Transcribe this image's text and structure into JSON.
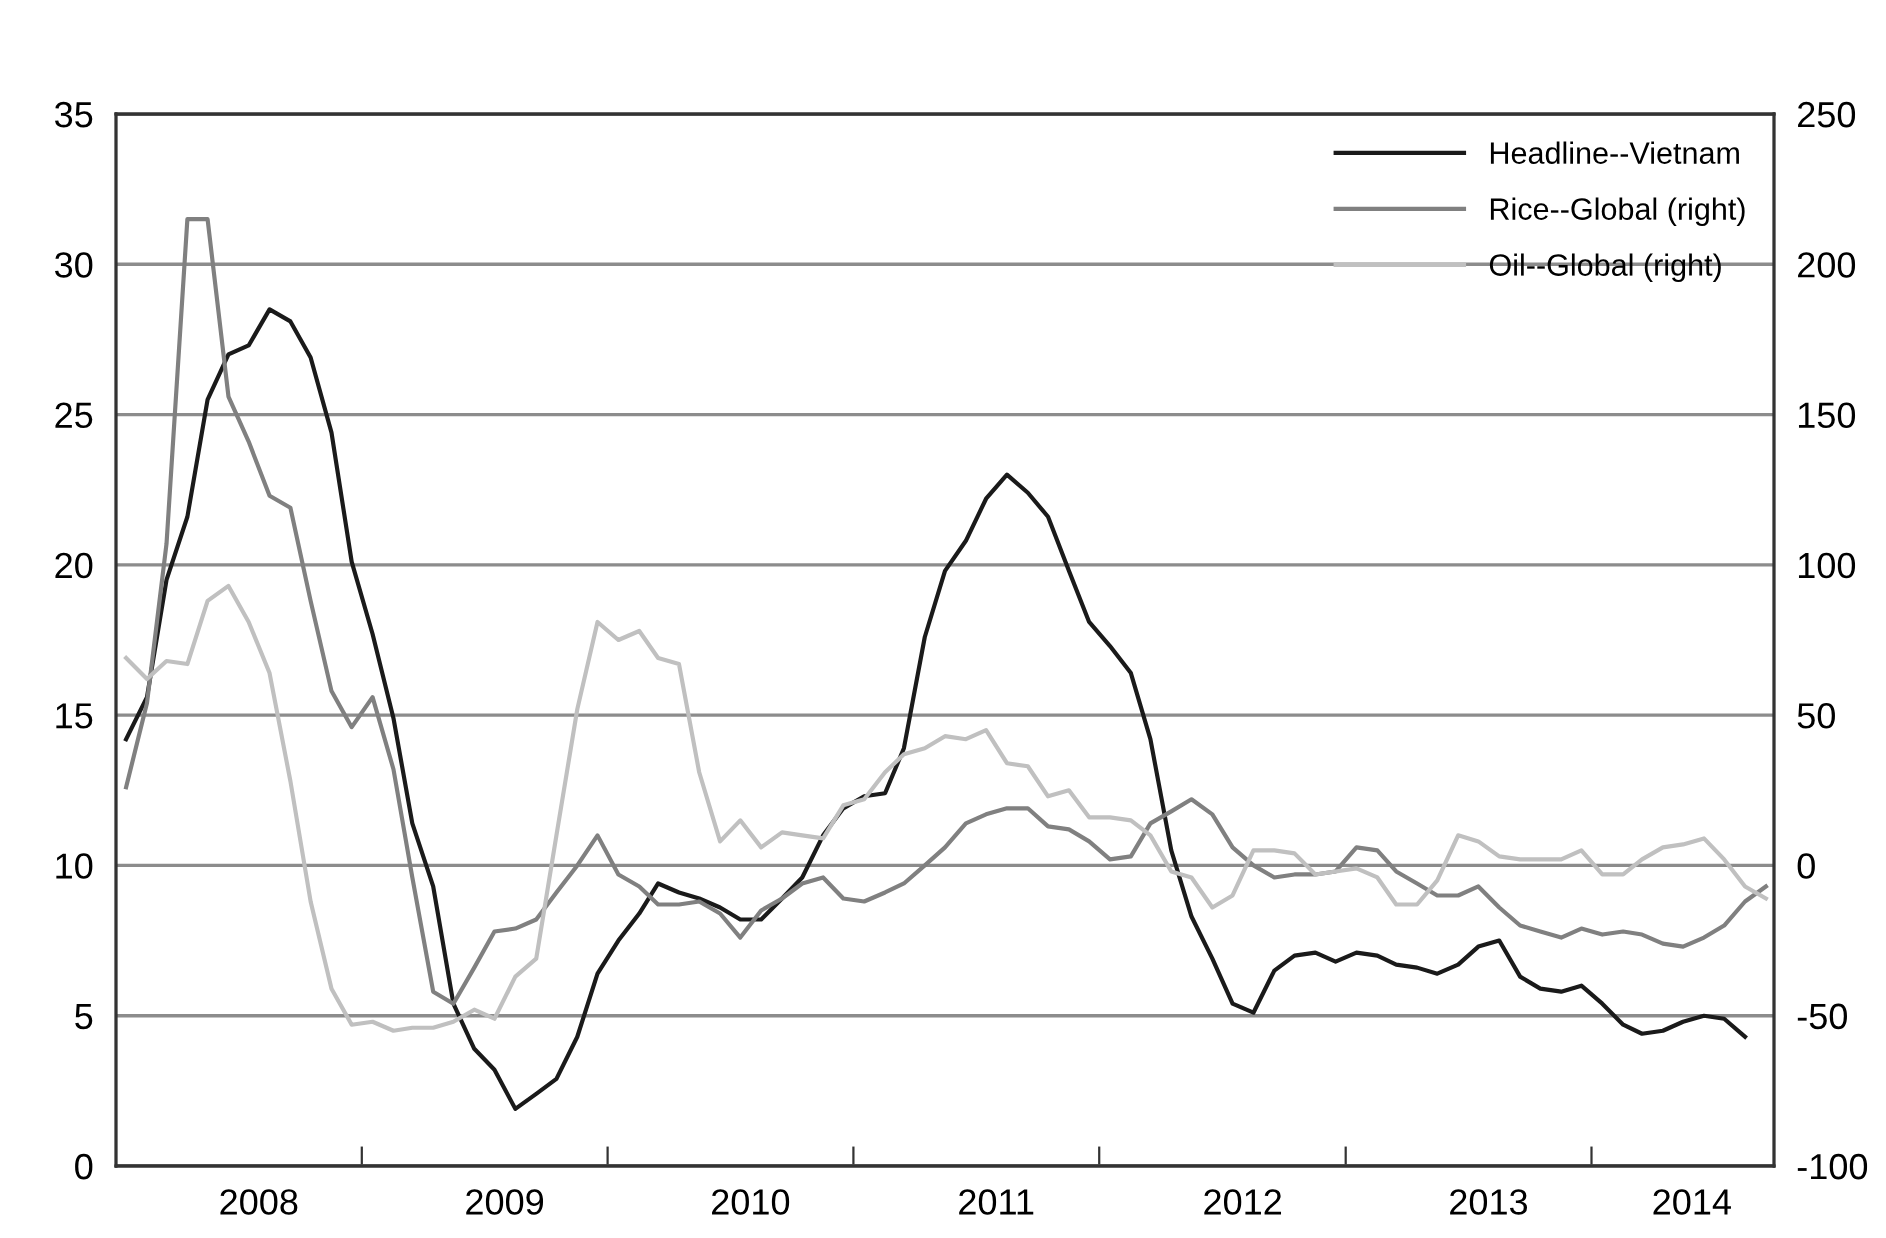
{
  "chart_data": {
    "type": "line",
    "x": [
      "2008-01",
      "2008-02",
      "2008-03",
      "2008-04",
      "2008-05",
      "2008-06",
      "2008-07",
      "2008-08",
      "2008-09",
      "2008-10",
      "2008-11",
      "2008-12",
      "2009-01",
      "2009-02",
      "2009-03",
      "2009-04",
      "2009-05",
      "2009-06",
      "2009-07",
      "2009-08",
      "2009-09",
      "2009-10",
      "2009-11",
      "2009-12",
      "2010-01",
      "2010-02",
      "2010-03",
      "2010-04",
      "2010-05",
      "2010-06",
      "2010-07",
      "2010-08",
      "2010-09",
      "2010-10",
      "2010-11",
      "2010-12",
      "2011-01",
      "2011-02",
      "2011-03",
      "2011-04",
      "2011-05",
      "2011-06",
      "2011-07",
      "2011-08",
      "2011-09",
      "2011-10",
      "2011-11",
      "2011-12",
      "2012-01",
      "2012-02",
      "2012-03",
      "2012-04",
      "2012-05",
      "2012-06",
      "2012-07",
      "2012-08",
      "2012-09",
      "2012-10",
      "2012-11",
      "2012-12",
      "2013-01",
      "2013-02",
      "2013-03",
      "2013-04",
      "2013-05",
      "2013-06",
      "2013-07",
      "2013-08",
      "2013-09",
      "2013-10",
      "2013-11",
      "2013-12",
      "2014-01",
      "2014-02",
      "2014-03",
      "2014-04",
      "2014-05",
      "2014-06",
      "2014-07",
      "2014-08",
      "2014-09"
    ],
    "series": [
      {
        "name": "Headline--Vietnam",
        "color": "#1a1a1a",
        "values": [
          14.2,
          15.6,
          19.5,
          21.6,
          25.5,
          27.0,
          27.3,
          28.5,
          28.1,
          26.9,
          24.4,
          20.1,
          17.7,
          14.9,
          11.4,
          9.3,
          5.4,
          3.9,
          3.2,
          1.9,
          2.4,
          2.9,
          4.3,
          6.4,
          7.5,
          8.4,
          9.4,
          9.1,
          8.9,
          8.6,
          8.2,
          8.2,
          8.9,
          9.6,
          11.0,
          11.9,
          12.3,
          12.4,
          13.9,
          17.6,
          19.8,
          20.8,
          22.2,
          23.0,
          22.4,
          21.6,
          19.8,
          18.1,
          17.3,
          16.4,
          14.2,
          10.5,
          8.3,
          6.9,
          5.4,
          5.1,
          6.5,
          7.0,
          7.1,
          6.8,
          7.1,
          7.0,
          6.7,
          6.6,
          6.4,
          6.7,
          7.3,
          7.5,
          6.3,
          5.9,
          5.8,
          6.0,
          5.4,
          4.7,
          4.4,
          4.5,
          4.8,
          5.0,
          4.9,
          4.3,
          null
        ]
      },
      {
        "name": "Rice--Global (right)",
        "color": "#808080",
        "axis": "y2",
        "values": [
          26,
          54,
          107,
          215,
          215,
          156,
          141,
          123,
          119,
          88,
          58,
          46,
          56,
          32,
          -4,
          -42,
          -46,
          -34,
          -22,
          -21,
          -18,
          -9,
          0,
          10,
          -3,
          -7,
          -13,
          -13,
          -12,
          -16,
          -24,
          -15,
          -11,
          -6,
          -4,
          -11,
          -12,
          -9,
          -6,
          0,
          6,
          14,
          17,
          19,
          19,
          13,
          12,
          8,
          2,
          3,
          14,
          18,
          22,
          17,
          6,
          0,
          -4,
          -3,
          -3,
          -2,
          6,
          5,
          -2,
          -6,
          -10,
          -10,
          -7,
          -14,
          -20,
          -22,
          -24,
          -21,
          -23,
          -22,
          -23,
          -26,
          -27,
          -24,
          -20,
          -12,
          -7
        ]
      },
      {
        "name": "Oil--Global (right)",
        "color": "#c0c0c0",
        "axis": "y2",
        "values": [
          69,
          62,
          68,
          67,
          88,
          93,
          81,
          64,
          28,
          -12,
          -41,
          -53,
          -52,
          -55,
          -54,
          -54,
          -52,
          -48,
          -51,
          -37,
          -31,
          10,
          52,
          81,
          75,
          78,
          69,
          67,
          31,
          8,
          15,
          6,
          11,
          10,
          9,
          20,
          22,
          31,
          37,
          39,
          43,
          42,
          45,
          34,
          33,
          23,
          25,
          16,
          16,
          15,
          10,
          -2,
          -4,
          -14,
          -10,
          5,
          5,
          4,
          -3,
          -2,
          -1,
          -4,
          -13,
          -13,
          -5,
          10,
          8,
          3,
          2,
          2,
          2,
          5,
          -3,
          -3,
          2,
          6,
          7,
          9,
          2,
          -7,
          -11
        ]
      }
    ],
    "xlim": [
      "2007-12-17",
      "2014-09-13"
    ],
    "xticks": [
      {
        "value": "2008-12-16",
        "label": null
      },
      {
        "value": "2009-12-16",
        "label": null
      },
      {
        "value": "2010-12-16",
        "label": null
      },
      {
        "value": "2011-12-16",
        "label": null
      },
      {
        "value": "2012-12-16",
        "label": null
      },
      {
        "value": "2013-12-16",
        "label": null
      },
      {
        "value": "2008-07-16",
        "label": "2008"
      },
      {
        "value": "2009-07-16",
        "label": "2009"
      },
      {
        "value": "2010-07-16",
        "label": "2010"
      },
      {
        "value": "2011-07-16",
        "label": "2011"
      },
      {
        "value": "2012-07-16",
        "label": "2012"
      },
      {
        "value": "2013-07-16",
        "label": "2013"
      },
      {
        "value": "2014-05-14",
        "label": "2014"
      }
    ],
    "ylim": [
      0,
      35
    ],
    "yticks": [
      0,
      5,
      10,
      15,
      20,
      25,
      30,
      35
    ],
    "y2lim": [
      -100,
      250
    ],
    "y2ticks": [
      -100,
      -50,
      0,
      50,
      100,
      150,
      200,
      250
    ],
    "grid": "y",
    "legend": "top right",
    "line_style": "solid",
    "marker": "none"
  }
}
